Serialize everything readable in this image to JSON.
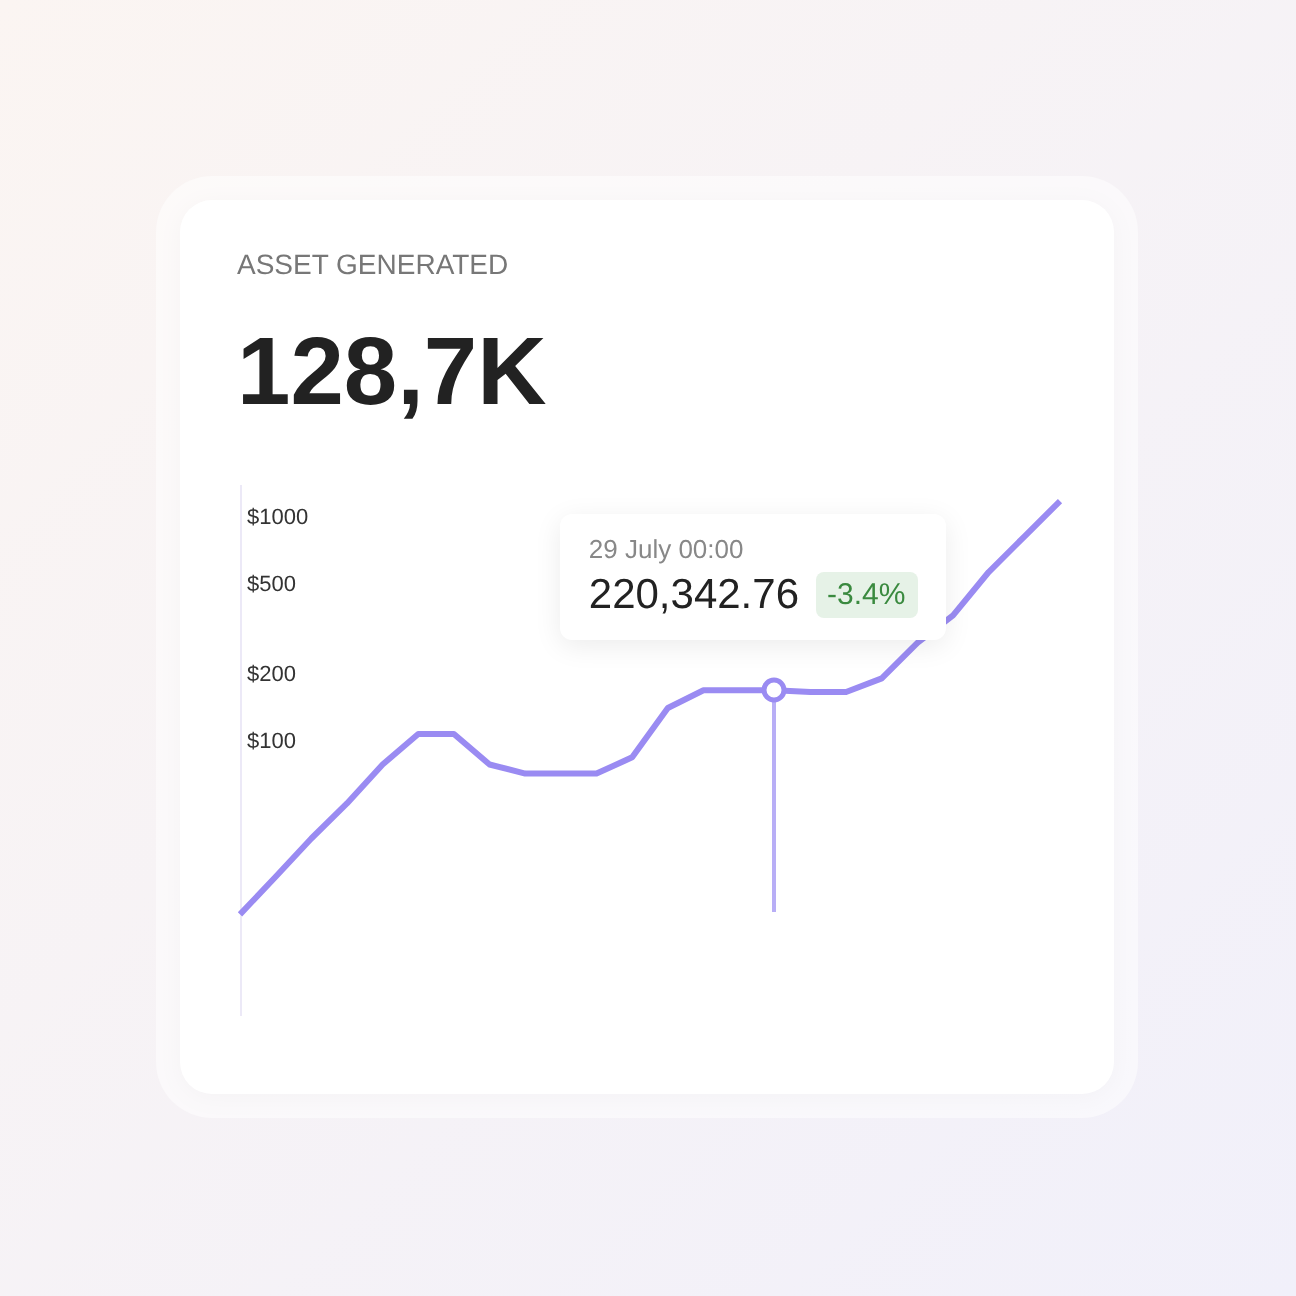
{
  "chart_data": {
    "type": "line",
    "title": "ASSET GENERATED",
    "subtitle": "128,7K",
    "categories": [
      null,
      null,
      null,
      null,
      null,
      null,
      null,
      null,
      null,
      null,
      null,
      null,
      null,
      null,
      null,
      null,
      null,
      null,
      null,
      null,
      null,
      null,
      null,
      null
    ],
    "series": [
      {
        "color": "#9a8bf2",
        "values": [
          17,
          25,
          37,
          53,
          79,
          108,
          108,
          79,
          72,
          72,
          72,
          85,
          141,
          169,
          169,
          169,
          166,
          166,
          191,
          275,
          364,
          568,
          817,
          1175
        ]
      }
    ],
    "ylim": [
      6,
      1400
    ],
    "log": "y",
    "yticks": [
      {
        "value": 100,
        "label": "$100"
      },
      {
        "value": 200,
        "label": "$200"
      },
      {
        "value": 500,
        "label": "$500"
      },
      {
        "value": 1000,
        "label": "$1000"
      }
    ],
    "annotations": [
      "29 July 00:00",
      "220,342.76",
      "-3.4%"
    ]
  }
}
